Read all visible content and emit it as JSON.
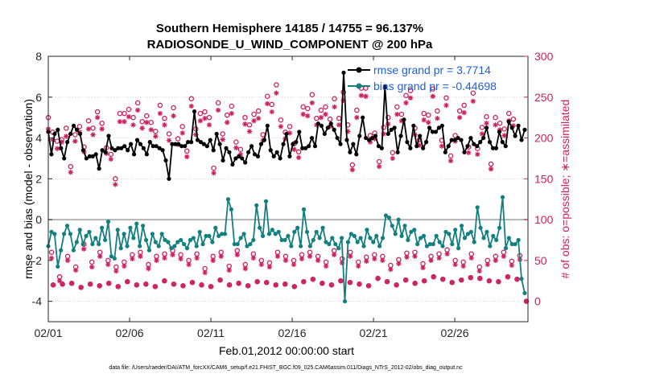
{
  "chart_data": {
    "type": "line",
    "title": [
      "Southern Hemisphere 14185 / 14755 = 96.137%",
      "RADIOSONDE_U_WIND_COMPONENT @ 200 hPa"
    ],
    "xlabel": "Feb.01,2012 00:00:00 start",
    "ylabel_left": "rmse and bias (model - observation)",
    "ylabel_right": "# of obs: o=possible; ∗=assimilated",
    "ylim_left": [
      -5,
      8
    ],
    "ylim_right": [
      -25,
      300
    ],
    "yticks_left": [
      -4,
      -2,
      0,
      2,
      4,
      6,
      8
    ],
    "yticks_right": [
      0,
      50,
      100,
      150,
      200,
      250,
      300
    ],
    "xlim": [
      0,
      29.5
    ],
    "xtick_labels": [
      "02/01",
      "02/06",
      "02/11",
      "02/16",
      "02/21",
      "02/26"
    ],
    "xtick_days": [
      0,
      5,
      10,
      15,
      20,
      25
    ],
    "zero_line": 0,
    "footnote": "data file: /Users/raeder/DAI/ATM_forcXX/CAM6_setup/f.e21.FHIST_BGC.f09_025.CAM6assim.011/Diags_NTrS_2012-02/obs_diag_output.nc",
    "colors": {
      "rmse": "#000000",
      "bias": "#138080",
      "obs": "#cc1f5e",
      "zero": "#b4b4b4",
      "legend_text": "#1f5fd6"
    },
    "legend": [
      "rmse grand pr = 3.7714",
      "bias grand pr = -0.44698"
    ],
    "series": [
      {
        "name": "rmse",
        "values": [
          4.3,
          3.2,
          4.2,
          4.4,
          3.5,
          3.0,
          3.8,
          4.2,
          4.6,
          4.4,
          4.2,
          3.4,
          3.0,
          3.1,
          3.1,
          3.2,
          2.5,
          3.4,
          3.3,
          4.1,
          3.5,
          3.4,
          3.5,
          3.5,
          3.6,
          3.4,
          3.7,
          3.2,
          3.9,
          3.7,
          3.5,
          3.2,
          3.8,
          3.6,
          3.6,
          3.5,
          3.4,
          2.9,
          2.0,
          3.7,
          3.7,
          3.7,
          3.6,
          3.6,
          3.8,
          3.8,
          5.3,
          3.9,
          3.8,
          3.7,
          3.6,
          3.9,
          3.4,
          4.2,
          3.7,
          2.9,
          3.5,
          3.3,
          2.7,
          3.0,
          3.1,
          3.0,
          2.8,
          3.3,
          3.6,
          3.2,
          3.1,
          3.7,
          3.9,
          4.6,
          3.4,
          3.1,
          3.3,
          3.0,
          3.7,
          4.2,
          3.1,
          3.7,
          3.8,
          4.3,
          3.5,
          3.5,
          3.6,
          4.0,
          3.6,
          4.7,
          4.6,
          4.2,
          4.5,
          4.7,
          4.4,
          4.0,
          3.7,
          7.2,
          3.9,
          3.3,
          3.7,
          3.2,
          4.1,
          5.0,
          4.0,
          3.9,
          4.0,
          4.1,
          3.6,
          3.5,
          6.5,
          4.2,
          4.4,
          4.5,
          3.3,
          4.1,
          4.9,
          3.8,
          3.5,
          4.6,
          3.6,
          4.1,
          3.5,
          3.8,
          4.5,
          4.3,
          4.3,
          4.5,
          4.6,
          3.3,
          3.6,
          3.9,
          3.9,
          4.0,
          3.9,
          3.3,
          3.6,
          4.0,
          3.7,
          3.6,
          3.8,
          4.0,
          4.5,
          3.8,
          3.5,
          3.5,
          4.3,
          3.8,
          3.6,
          4.8,
          4.5,
          4.1,
          4.6,
          3.9,
          4.4
        ]
      },
      {
        "name": "bias",
        "values": [
          -1.3,
          -0.6,
          -0.7,
          -2.3,
          -1.5,
          -0.7,
          -0.3,
          -0.7,
          -1.5,
          -1.1,
          -0.5,
          -1.2,
          -0.8,
          -0.6,
          -1.2,
          -0.9,
          -1.2,
          -0.4,
          -1.0,
          -0.1,
          -1.8,
          -1.9,
          -0.5,
          -1.4,
          -0.7,
          -1.3,
          -0.4,
          -0.9,
          -0.2,
          -1.3,
          -0.3,
          -1.0,
          -1.5,
          -0.7,
          -1.1,
          -1.3,
          -0.7,
          -1.0,
          -1.1,
          -1.4,
          -1.3,
          -1.1,
          -1.0,
          -1.2,
          -1.4,
          -1.0,
          -0.9,
          -1.3,
          -0.6,
          -1.2,
          -0.8,
          -0.8,
          -1.1,
          -0.4,
          -0.8,
          -0.7,
          -0.7,
          1.0,
          0.5,
          -1.2,
          -1.2,
          -0.9,
          -0.7,
          -1.3,
          -1.2,
          -1.0,
          0.7,
          -0.4,
          -0.8,
          0.9,
          -0.7,
          -0.5,
          -0.7,
          -0.6,
          -1.0,
          -1.0,
          -0.8,
          -1.3,
          -0.6,
          -0.4,
          -1.3,
          0.5,
          -0.6,
          -1.3,
          -1.0,
          -0.6,
          -0.9,
          -0.4,
          -1.1,
          -1.2,
          -0.9,
          -1.2,
          -1.4,
          -0.9,
          -4.0,
          -1.1,
          -0.7,
          -0.8,
          -1.1,
          -0.9,
          -1.3,
          -0.5,
          -0.9,
          -1.1,
          -0.8,
          -1.3,
          -0.9,
          0.2,
          0.1,
          -0.3,
          -0.7,
          0.0,
          -0.8,
          -0.3,
          -1.0,
          -0.6,
          -0.5,
          -1.2,
          -0.9,
          -0.8,
          -1.3,
          -1.2,
          -1.2,
          -0.8,
          -1.1,
          -1.3,
          -0.6,
          -0.7,
          -1.2,
          -0.5,
          -1.4,
          -0.3,
          -0.9,
          -0.7,
          -0.6,
          -1.1,
          0.6,
          -0.4,
          -0.9,
          -0.6,
          -1.3,
          -0.8,
          -1.0,
          -0.4,
          1.1,
          -1.4,
          -0.9,
          -1.2,
          -1.2,
          -1.0,
          -2.9,
          -3.6
        ]
      },
      {
        "name": "obs_possible",
        "values": [
          225,
          207,
          196,
          198,
          212,
          165,
          204,
          214,
          189,
          221,
          212,
          232,
          218,
          188,
          180,
          150,
          230,
          230,
          235,
          225,
          243,
          220,
          227,
          219,
          208,
          240,
          224,
          205,
          237,
          199,
          214,
          184,
          248,
          211,
          230,
          232,
          225,
          163,
          243,
          205,
          228,
          239,
          195,
          186,
          225,
          216,
          229,
          233,
          204,
          251,
          241,
          265,
          222,
          207,
          214,
          193,
          183,
          238,
          236,
          253,
          224,
          234,
          238,
          223,
          248,
          224,
          256,
          216,
          167,
          234,
          261,
          261,
          203,
          206,
          171,
          213,
          225,
          182,
          238,
          229,
          252,
          258,
          212,
          198,
          230,
          228,
          260,
          233,
          197,
          249,
          178,
          203,
          233,
          240,
          189,
          255,
          187,
          213,
          226,
          168,
          225,
          218,
          211,
          230,
          223
        ]
      },
      {
        "name": "obs_assimilated",
        "values": [
          211,
          198,
          187,
          195,
          202,
          158,
          196,
          207,
          183,
          211,
          204,
          225,
          211,
          181,
          174,
          143,
          220,
          220,
          226,
          216,
          234,
          212,
          219,
          210,
          202,
          230,
          216,
          197,
          227,
          192,
          206,
          177,
          239,
          204,
          221,
          224,
          216,
          157,
          234,
          198,
          219,
          230,
          188,
          180,
          217,
          208,
          221,
          224,
          197,
          242,
          232,
          255,
          214,
          199,
          206,
          186,
          176,
          229,
          227,
          243,
          216,
          225,
          229,
          214,
          238,
          216,
          246,
          208,
          161,
          225,
          252,
          251,
          195,
          199,
          165,
          205,
          217,
          175,
          229,
          221,
          243,
          249,
          204,
          191,
          222,
          219,
          251,
          224,
          190,
          240,
          172,
          196,
          225,
          231,
          182,
          245,
          180,
          205,
          218,
          162,
          216,
          210,
          203,
          221,
          215
        ]
      },
      {
        "name": "obs_possible_lower",
        "values": [
          60,
          30,
          55,
          42,
          70,
          48,
          60,
          50,
          42,
          48,
          57,
          60,
          45,
          55,
          58,
          62,
          57,
          50,
          58,
          40,
          55,
          60,
          43,
          62,
          45,
          58,
          50,
          47,
          60,
          55,
          50,
          57,
          60,
          55,
          48,
          62,
          52,
          60,
          48,
          54,
          57,
          55,
          44,
          51,
          59,
          60,
          46,
          55,
          58,
          63,
          50,
          48,
          58,
          42,
          50,
          55,
          60,
          49,
          56
        ]
      },
      {
        "name": "obs_assimilated_lower",
        "values": [
          53,
          25,
          50,
          38,
          64,
          42,
          55,
          45,
          37,
          43,
          52,
          55,
          40,
          50,
          53,
          57,
          52,
          45,
          53,
          35,
          50,
          55,
          38,
          57,
          40,
          53,
          45,
          42,
          55,
          50,
          45,
          52,
          55,
          50,
          43,
          57,
          47,
          55,
          43,
          49,
          52,
          50,
          39,
          46,
          54,
          55,
          41,
          50,
          53,
          58,
          45,
          43,
          53,
          37,
          45,
          50,
          55,
          44,
          51
        ]
      },
      {
        "name": "obs_possible_bottom",
        "values": [
          20,
          21,
          22,
          17,
          21,
          19,
          22,
          18,
          24,
          20,
          21,
          18,
          25,
          21,
          19,
          23,
          20,
          18,
          26,
          20,
          22,
          19,
          24,
          23,
          20,
          21,
          18,
          24,
          27,
          22,
          20,
          25,
          23,
          21,
          19,
          28,
          24,
          20,
          26,
          22,
          25,
          30,
          27,
          23,
          26,
          29,
          28,
          25,
          24,
          30,
          27,
          0
        ]
      },
      {
        "name": "obs_assimilated_bottom",
        "values": [
          20,
          21,
          22,
          17,
          21,
          19,
          22,
          18,
          24,
          20,
          21,
          18,
          25,
          21,
          19,
          23,
          20,
          18,
          26,
          20,
          22,
          19,
          24,
          23,
          20,
          21,
          18,
          24,
          27,
          22,
          20,
          25,
          23,
          21,
          19,
          28,
          24,
          20,
          26,
          22,
          25,
          30,
          27,
          23,
          26,
          29,
          28,
          25,
          24,
          30,
          27,
          0
        ]
      }
    ]
  }
}
